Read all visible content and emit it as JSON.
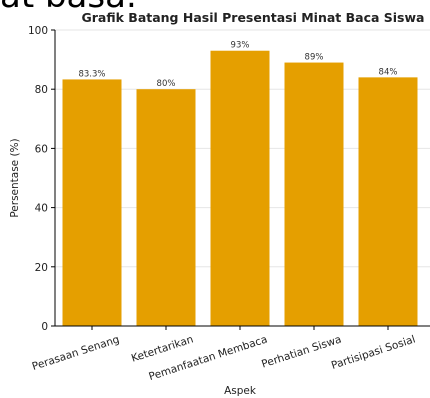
{
  "caption_fragment": "at basa.",
  "chart_data": {
    "type": "bar",
    "title": "Grafik Batang Hasil Presentasi Minat Baca Siswa",
    "xlabel": "Aspek",
    "ylabel": "Persentase (%)",
    "categories": [
      "Perasaan Senang",
      "Ketertarikan",
      "Pemanfaatan Membaca",
      "Perhatian Siswa",
      "Partisipasi Sosial"
    ],
    "values": [
      83.3,
      80,
      93,
      89,
      84
    ],
    "data_labels": [
      "83.3%",
      "80%",
      "93%",
      "89%",
      "84%"
    ],
    "ylim": [
      0,
      100
    ],
    "yticks": [
      "0",
      "20",
      "40",
      "60",
      "80",
      "100"
    ],
    "bar_color": "#E59F00",
    "grid": true
  }
}
